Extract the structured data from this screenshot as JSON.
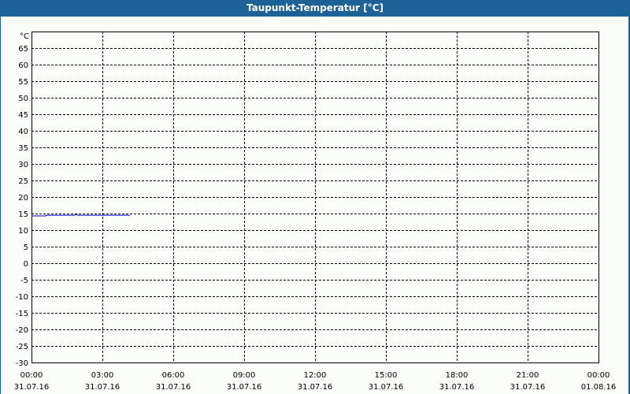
{
  "window": {
    "title": "Taupunkt-Temperatur [°C]"
  },
  "chart_data": {
    "type": "line",
    "title": "Taupunkt-Temperatur [°C]",
    "ylabel": "°C",
    "ylim": [
      -30,
      70
    ],
    "yticks": [
      65,
      60,
      55,
      50,
      45,
      40,
      35,
      30,
      25,
      20,
      15,
      10,
      5,
      0,
      -5,
      -10,
      -15,
      -20,
      -25,
      -30
    ],
    "xlim": [
      "31.07.16 00:00",
      "01.08.16 00:00"
    ],
    "xticks": [
      {
        "time": "00:00",
        "date": "31.07.16"
      },
      {
        "time": "03:00",
        "date": "31.07.16"
      },
      {
        "time": "06:00",
        "date": "31.07.16"
      },
      {
        "time": "09:00",
        "date": "31.07.16"
      },
      {
        "time": "12:00",
        "date": "31.07.16"
      },
      {
        "time": "15:00",
        "date": "31.07.16"
      },
      {
        "time": "18:00",
        "date": "31.07.16"
      },
      {
        "time": "21:00",
        "date": "31.07.16"
      },
      {
        "time": "00:00",
        "date": "01.08.16"
      }
    ],
    "grid": true,
    "series": [
      {
        "color": "#0000cc",
        "points": [
          [
            "00:00",
            14.3
          ],
          [
            "00:36",
            14.3
          ],
          [
            "00:37",
            14.5
          ],
          [
            "01:50",
            14.5
          ],
          [
            "01:53",
            14.8
          ],
          [
            "01:58",
            14.5
          ],
          [
            "04:10",
            14.5
          ]
        ]
      }
    ]
  }
}
